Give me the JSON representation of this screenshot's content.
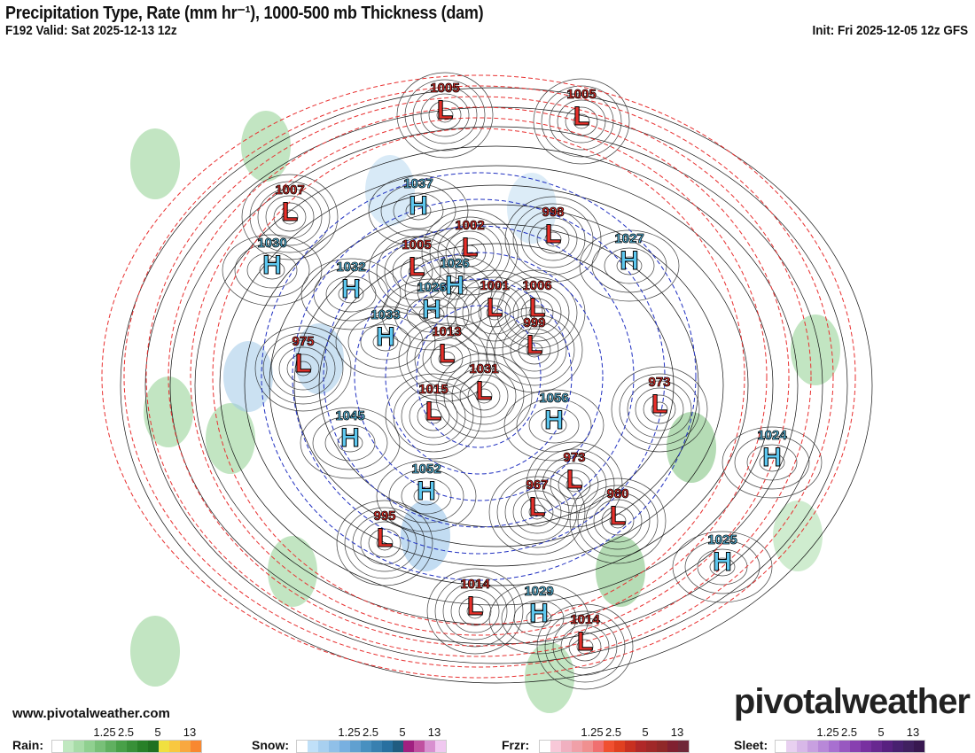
{
  "header": {
    "title": "Precipitation Type, Rate (mm hr⁻¹), 1000-500 mb Thickness (dam)",
    "valid": "F192 Valid: Sat 2025-12-13 12z",
    "init": "Init: Fri 2025-12-05 12z GFS"
  },
  "footer": {
    "website": "www.pivotalweather.com",
    "brand": "pivotalweather"
  },
  "map": {
    "pressure_centers": [
      {
        "type": "L",
        "value": "1005"
      },
      {
        "type": "L",
        "value": "1005"
      },
      {
        "type": "L",
        "value": "1007"
      },
      {
        "type": "H",
        "value": "1037"
      },
      {
        "type": "L",
        "value": "1002"
      },
      {
        "type": "L",
        "value": "998"
      },
      {
        "type": "H",
        "value": "1030"
      },
      {
        "type": "H",
        "value": "1027"
      },
      {
        "type": "H",
        "value": "1032"
      },
      {
        "type": "L",
        "value": "1005"
      },
      {
        "type": "H",
        "value": "1026"
      },
      {
        "type": "H",
        "value": "1026"
      },
      {
        "type": "L",
        "value": "1001"
      },
      {
        "type": "L",
        "value": "1006"
      },
      {
        "type": "H",
        "value": "1033"
      },
      {
        "type": "L",
        "value": "1013"
      },
      {
        "type": "L",
        "value": "999"
      },
      {
        "type": "L",
        "value": "975"
      },
      {
        "type": "L",
        "value": "1031"
      },
      {
        "type": "L",
        "value": "1015"
      },
      {
        "type": "H",
        "value": "1056"
      },
      {
        "type": "L",
        "value": "973"
      },
      {
        "type": "H",
        "value": "1045"
      },
      {
        "type": "H",
        "value": "1024"
      },
      {
        "type": "L",
        "value": "973"
      },
      {
        "type": "H",
        "value": "1052"
      },
      {
        "type": "L",
        "value": "967"
      },
      {
        "type": "L",
        "value": "980"
      },
      {
        "type": "L",
        "value": "995"
      },
      {
        "type": "H",
        "value": "1025"
      },
      {
        "type": "L",
        "value": "1014"
      },
      {
        "type": "H",
        "value": "1029"
      },
      {
        "type": "L",
        "value": "1014"
      }
    ],
    "colors": {
      "high": "#5ec8f0",
      "low": "#e8302a",
      "thickness": "#e83030",
      "thickness_cold": "#2030c0",
      "isobar": "#111111"
    }
  },
  "legend": {
    "ticks": [
      "1.25",
      "2.5",
      "5",
      "13"
    ],
    "rain": {
      "label": "Rain:",
      "colors": [
        "#ffffff",
        "#c0e8c0",
        "#a8dca8",
        "#90d090",
        "#78c078",
        "#60b060",
        "#48a048",
        "#389038",
        "#288028",
        "#207020",
        "#f0e040",
        "#f8c840",
        "#f8a840",
        "#f88830"
      ]
    },
    "snow": {
      "label": "Snow:",
      "colors": [
        "#ffffff",
        "#c0e0f8",
        "#a8d0f0",
        "#90c0e8",
        "#78b0e0",
        "#60a0d0",
        "#4890c0",
        "#3880b0",
        "#2870a0",
        "#205c80",
        "#a02080",
        "#c050a0",
        "#d890d0",
        "#f0c8f0"
      ]
    },
    "frzr": {
      "label": "Frzr:",
      "colors": [
        "#ffffff",
        "#f8c8d8",
        "#f0b0c0",
        "#f0a0a8",
        "#f09090",
        "#f07070",
        "#f05030",
        "#e04020",
        "#c83020",
        "#b02828",
        "#a02828",
        "#902828",
        "#802030",
        "#702838"
      ]
    },
    "sleet": {
      "label": "Sleet:",
      "colors": [
        "#ffffff",
        "#e8d0f0",
        "#d8b8e8",
        "#c8a0e0",
        "#b888d8",
        "#a870d0",
        "#9858c0",
        "#8840b0",
        "#7830a0",
        "#682890",
        "#582080",
        "#482070",
        "#402060",
        "#381850"
      ]
    }
  }
}
